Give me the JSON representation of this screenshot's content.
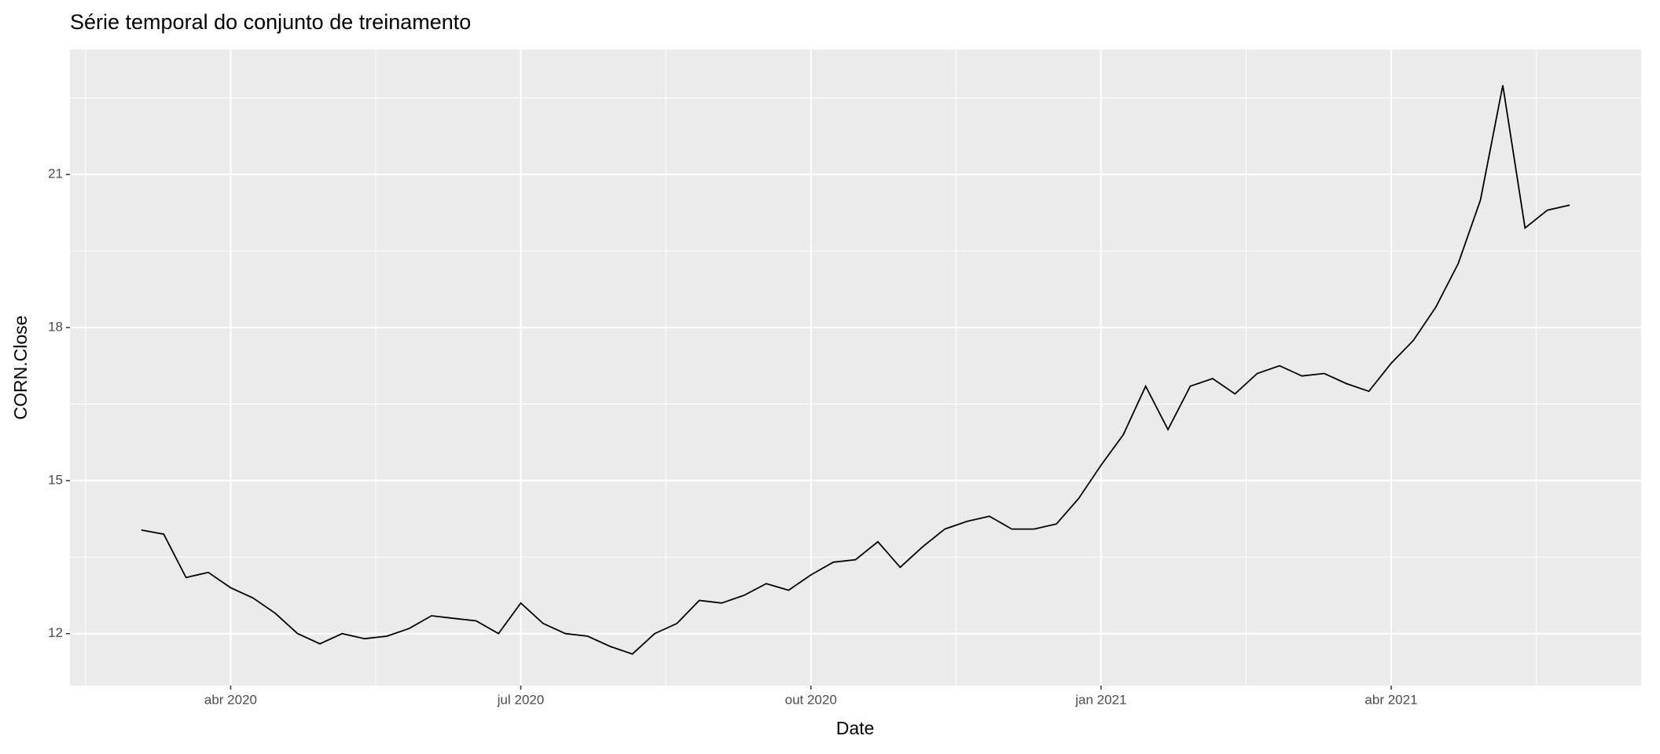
{
  "chart_data": {
    "type": "line",
    "title": "Série temporal do conjunto de treinamento",
    "x_label": "Date",
    "y_label": "CORN.Close",
    "categories": [
      null,
      null,
      null,
      null,
      "abr 2020",
      null,
      null,
      null,
      null,
      null,
      null,
      null,
      null,
      null,
      null,
      null,
      null,
      "jul 2020",
      null,
      null,
      null,
      null,
      null,
      null,
      null,
      null,
      null,
      null,
      null,
      null,
      "out 2020",
      null,
      null,
      null,
      null,
      null,
      null,
      null,
      null,
      null,
      null,
      null,
      null,
      "jan 2021",
      null,
      null,
      null,
      null,
      null,
      null,
      null,
      null,
      null,
      null,
      null,
      null,
      "abr 2021",
      null,
      null,
      null,
      null,
      null,
      null,
      null,
      null
    ],
    "series": [
      {
        "name": "CORN.Close",
        "color": "#000000",
        "values": [
          14.03,
          13.95,
          13.1,
          13.2,
          12.9,
          12.7,
          12.4,
          12.0,
          11.8,
          12.0,
          11.9,
          11.95,
          12.1,
          12.35,
          12.3,
          12.25,
          12.0,
          12.6,
          12.2,
          12.0,
          11.95,
          11.75,
          11.6,
          12.0,
          12.2,
          12.65,
          12.6,
          12.75,
          12.98,
          12.85,
          13.15,
          13.4,
          13.45,
          13.8,
          13.3,
          13.7,
          14.05,
          14.2,
          14.3,
          14.05,
          14.05,
          14.15,
          14.65,
          15.3,
          15.9,
          16.85,
          16.0,
          16.85,
          17.0,
          16.7,
          17.1,
          17.25,
          17.05,
          17.1,
          16.9,
          16.75,
          17.3,
          17.75,
          18.4,
          19.25,
          20.5,
          22.75,
          19.95,
          20.3,
          20.4
        ]
      }
    ],
    "ylim": [
      10.98,
      23.45
    ],
    "yticks": [
      12,
      15,
      18,
      21
    ],
    "grid": true
  }
}
